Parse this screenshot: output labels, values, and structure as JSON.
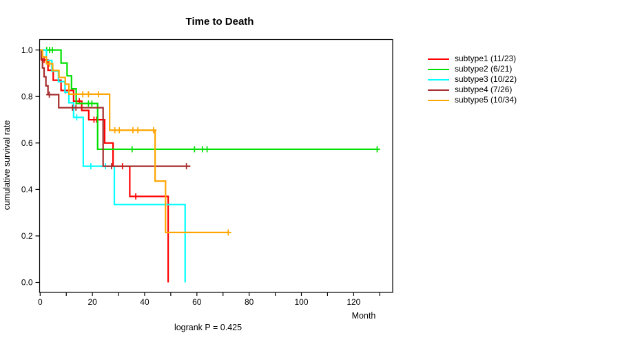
{
  "chart_data": {
    "type": "line",
    "variant": "kaplan-meier-step",
    "title": "Time to Death",
    "xlabel": "Month",
    "ylabel": "cumulative survival rate",
    "footer": "logrank P = 0.425",
    "xlim": [
      0,
      134
    ],
    "ylim": [
      0,
      1
    ],
    "x_ticks": [
      "0",
      "20",
      "40",
      "60",
      "80",
      "100",
      "120"
    ],
    "x_minor_tick_step": 10,
    "x_max_tick": 130,
    "y_ticks": [
      "0.0",
      "0.2",
      "0.4",
      "0.6",
      "0.8",
      "1.0"
    ],
    "grid": false,
    "legend_position": "right",
    "series": [
      {
        "name": "subtype1",
        "label": "subtype1 (11/23)",
        "color": "#FF0000",
        "steps": [
          [
            0.5,
            0.957
          ],
          [
            3,
            0.913
          ],
          [
            5,
            0.87
          ],
          [
            8,
            0.826
          ],
          [
            12.8,
            0.78
          ],
          [
            15.9,
            0.74
          ],
          [
            18.6,
            0.7
          ],
          [
            24.7,
            0.6
          ],
          [
            27.9,
            0.5
          ],
          [
            34.3,
            0.37
          ],
          [
            49,
            0.0
          ]
        ],
        "censors": [
          [
            1.5,
            0.957
          ],
          [
            9.6,
            0.826
          ],
          [
            15,
            0.78
          ],
          [
            20.6,
            0.7
          ],
          [
            21.6,
            0.7
          ],
          [
            31.5,
            0.5
          ],
          [
            36.6,
            0.37
          ]
        ],
        "end_x": 49
      },
      {
        "name": "subtype2",
        "label": "subtype2 (6/21)",
        "color": "#00E000",
        "steps": [
          [
            8,
            0.944
          ],
          [
            10.3,
            0.889
          ],
          [
            12,
            0.833
          ],
          [
            13.8,
            0.77
          ],
          [
            22,
            0.573
          ]
        ],
        "censors": [
          [
            2.5,
            1.0
          ],
          [
            3.6,
            1.0
          ],
          [
            4.7,
            1.0
          ],
          [
            18.5,
            0.77
          ],
          [
            19.8,
            0.77
          ],
          [
            35.2,
            0.573
          ],
          [
            59.1,
            0.573
          ],
          [
            62.1,
            0.573
          ],
          [
            63.9,
            0.573
          ],
          [
            129,
            0.573
          ]
        ],
        "end_x": 129.6
      },
      {
        "name": "subtype3",
        "label": "subtype3 (10/22)",
        "color": "#00FFFF",
        "steps": [
          [
            2.4,
            0.955
          ],
          [
            4.5,
            0.909
          ],
          [
            7,
            0.864
          ],
          [
            9.5,
            0.818
          ],
          [
            11,
            0.773
          ],
          [
            12.8,
            0.71
          ],
          [
            16.5,
            0.5
          ],
          [
            28.4,
            0.335
          ],
          [
            55.5,
            0.0
          ]
        ],
        "censors": [
          [
            14,
            0.71
          ],
          [
            19.4,
            0.5
          ],
          [
            25,
            0.5
          ]
        ],
        "end_x": 55.5
      },
      {
        "name": "subtype4",
        "label": "subtype4 (7/26)",
        "color": "#A52A2A",
        "steps": [
          [
            0.4,
            0.962
          ],
          [
            0.9,
            0.923
          ],
          [
            1.5,
            0.885
          ],
          [
            2.2,
            0.846
          ],
          [
            3,
            0.808
          ],
          [
            7.1,
            0.752
          ],
          [
            24.1,
            0.5
          ]
        ],
        "censors": [
          [
            3.5,
            0.808
          ],
          [
            12.4,
            0.752
          ],
          [
            13.7,
            0.752
          ],
          [
            27.3,
            0.5
          ],
          [
            56,
            0.5
          ]
        ],
        "end_x": 57.5
      },
      {
        "name": "subtype5",
        "label": "subtype5 (10/34)",
        "color": "#FFA500",
        "steps": [
          [
            0.9,
            0.971
          ],
          [
            2.4,
            0.941
          ],
          [
            4.8,
            0.912
          ],
          [
            7.2,
            0.882
          ],
          [
            9.6,
            0.853
          ],
          [
            11,
            0.81
          ],
          [
            26.6,
            0.655
          ],
          [
            44,
            0.436
          ],
          [
            48,
            0.215
          ]
        ],
        "censors": [
          [
            3.6,
            0.941
          ],
          [
            16.3,
            0.81
          ],
          [
            18.5,
            0.81
          ],
          [
            22.3,
            0.81
          ],
          [
            28.6,
            0.655
          ],
          [
            30.3,
            0.655
          ],
          [
            35.5,
            0.655
          ],
          [
            37.4,
            0.655
          ],
          [
            43.4,
            0.655
          ],
          [
            72,
            0.215
          ]
        ],
        "end_x": 72.6
      }
    ]
  }
}
